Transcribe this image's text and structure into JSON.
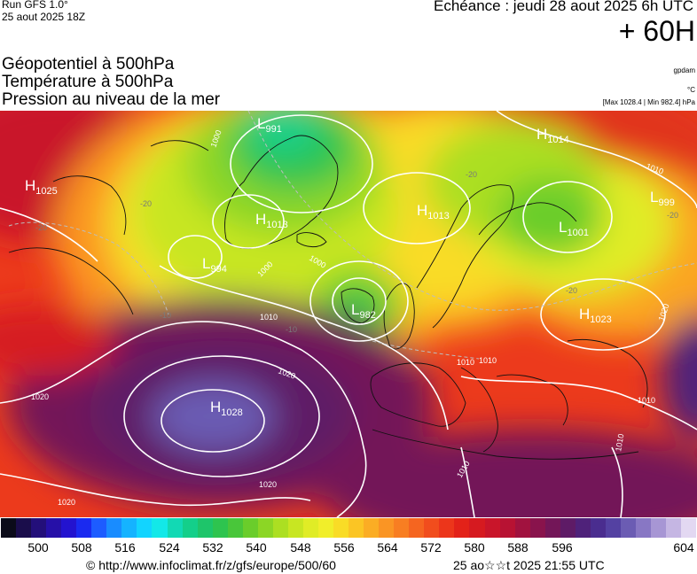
{
  "header": {
    "run": "Run GFS 1.0°",
    "run_time": "25 aout 2025 18Z",
    "echeance": "Echéance : jeudi 28 aout 2025 6h UTC",
    "step": "+ 60H"
  },
  "fields": {
    "line1": "Géopotentiel à 500hPa",
    "line2": "Température à 500hPa",
    "line3": "Pression au niveau de la mer"
  },
  "units": {
    "geopotential": "gpdam",
    "temperature": "°C",
    "pressure_range": "[Max 1028.4 | Min 982.4] hPa"
  },
  "pressure_centers": [
    {
      "type": "H",
      "value": "1025"
    },
    {
      "type": "L",
      "value": "991"
    },
    {
      "type": "H",
      "value": "1014"
    },
    {
      "type": "H",
      "value": "1013"
    },
    {
      "type": "H",
      "value": "1013"
    },
    {
      "type": "L",
      "value": "999"
    },
    {
      "type": "L",
      "value": "1001"
    },
    {
      "type": "L",
      "value": "994"
    },
    {
      "type": "L",
      "value": "982"
    },
    {
      "type": "H",
      "value": "1023"
    },
    {
      "type": "H",
      "value": "1028"
    }
  ],
  "isobar_labels": [
    "1000",
    "1000",
    "1000",
    "1010",
    "1010",
    "1010",
    "1010",
    "1010",
    "1010",
    "1020",
    "1020",
    "1020",
    "1020",
    "1020",
    "1010"
  ],
  "isotherm_labels": [
    "-20",
    "-20",
    "-20",
    "-20",
    "-20",
    "-10",
    "-10"
  ],
  "scale": {
    "colors": [
      "#0b0b19",
      "#1a0d4b",
      "#230f7a",
      "#2610a8",
      "#2313cf",
      "#1a2af0",
      "#1d5cff",
      "#198cff",
      "#15b3ff",
      "#12d4ff",
      "#13e8e8",
      "#12d9b4",
      "#14cf8a",
      "#1ec56a",
      "#2ec44f",
      "#49c63a",
      "#6acd2b",
      "#8cd625",
      "#acdf22",
      "#c8e622",
      "#e0ec26",
      "#f1ee2a",
      "#f9dc26",
      "#fbc524",
      "#fbad24",
      "#fa9524",
      "#f87e22",
      "#f56520",
      "#f14d1d",
      "#ec361b",
      "#e32219",
      "#d61a20",
      "#c9152a",
      "#b81233",
      "#a1123f",
      "#89134c",
      "#731658",
      "#5e1b66",
      "#4f227a",
      "#4a2d8f",
      "#5441a2",
      "#6b5cb3",
      "#8877c4",
      "#a796d4",
      "#c5b6e3",
      "#e3d8f2"
    ],
    "ticks": [
      "500",
      "508",
      "516",
      "524",
      "532",
      "540",
      "548",
      "556",
      "564",
      "572",
      "580",
      "588",
      "596",
      "604"
    ]
  },
  "footer": {
    "copyright": "© http://www.infoclimat.fr/z/gfs/europe/500/60",
    "generated": "25 ao☆☆t 2025 21:55 UTC"
  }
}
